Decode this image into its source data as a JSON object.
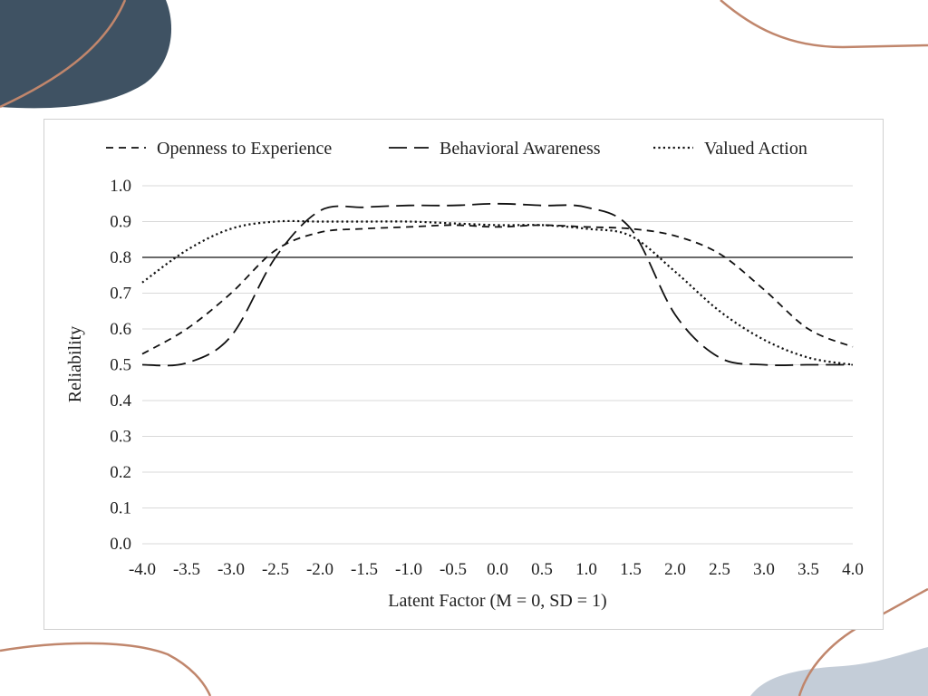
{
  "theme": {
    "dark_blob_color": "#3f5263",
    "light_blob_color": "#c4cdd8",
    "accent_line_color": "#c0866c"
  },
  "chart_data": {
    "type": "line",
    "title": "",
    "xlabel": "Latent Factor (M = 0, SD = 1)",
    "ylabel": "Reliability",
    "xlim": [
      -4.0,
      4.0
    ],
    "ylim": [
      0.0,
      1.0
    ],
    "x_ticks": [
      "-4.0",
      "-3.5",
      "-3.0",
      "-2.5",
      "-2.0",
      "-1.5",
      "-1.0",
      "-0.5",
      "0.0",
      "0.5",
      "1.0",
      "1.5",
      "2.0",
      "2.5",
      "3.0",
      "3.5",
      "4.0"
    ],
    "y_ticks": [
      "0.0",
      "0.1",
      "0.2",
      "0.3",
      "0.4",
      "0.5",
      "0.6",
      "0.7",
      "0.8",
      "0.9",
      "1.0"
    ],
    "grid": "horizontal",
    "legend_position": "top",
    "reference_line": 0.8,
    "x": [
      -4.0,
      -3.5,
      -3.0,
      -2.5,
      -2.0,
      -1.5,
      -1.0,
      -0.5,
      0.0,
      0.5,
      1.0,
      1.5,
      2.0,
      2.5,
      3.0,
      3.5,
      4.0
    ],
    "series": [
      {
        "name": "Openness to Experience",
        "dash": "dashed",
        "values": [
          0.53,
          0.6,
          0.7,
          0.82,
          0.87,
          0.88,
          0.885,
          0.89,
          0.885,
          0.89,
          0.885,
          0.88,
          0.86,
          0.81,
          0.71,
          0.6,
          0.55
        ]
      },
      {
        "name": "Behavioral Awareness",
        "dash": "long-dashed",
        "values": [
          0.5,
          0.505,
          0.58,
          0.8,
          0.93,
          0.94,
          0.945,
          0.945,
          0.95,
          0.945,
          0.94,
          0.88,
          0.64,
          0.52,
          0.5,
          0.5,
          0.5
        ]
      },
      {
        "name": "Valued Action",
        "dash": "dotted",
        "values": [
          0.73,
          0.82,
          0.88,
          0.9,
          0.9,
          0.9,
          0.9,
          0.895,
          0.89,
          0.89,
          0.88,
          0.86,
          0.76,
          0.65,
          0.57,
          0.52,
          0.5
        ]
      }
    ]
  }
}
